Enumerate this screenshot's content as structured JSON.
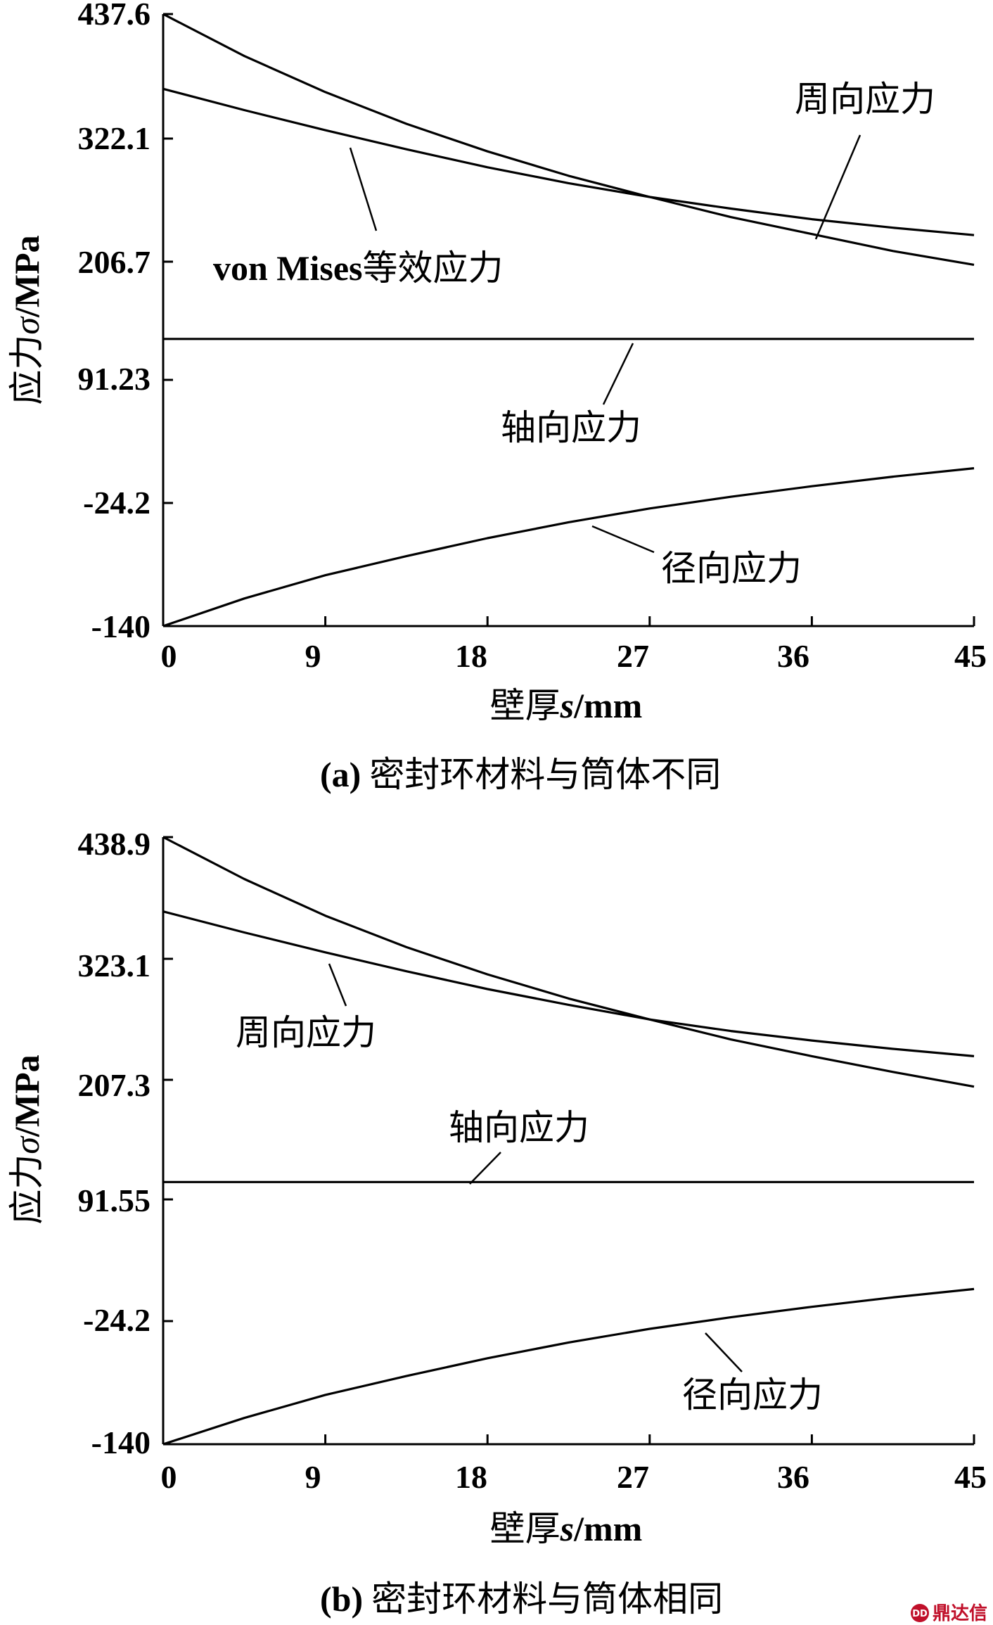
{
  "chart_data": [
    {
      "type": "line",
      "x_label_parts": [
        "壁厚",
        "s",
        "/mm"
      ],
      "y_label_parts": [
        "应力",
        "σ",
        "/MPa"
      ],
      "x_ticks": [
        "0",
        "9",
        "18",
        "27",
        "36",
        "45"
      ],
      "y_ticks": [
        "437.6",
        "322.1",
        "206.7",
        "91.23",
        "-24.2",
        "-140"
      ],
      "xlim": [
        0,
        45
      ],
      "ylim": [
        -140,
        437.6
      ],
      "grid": false,
      "series": [
        {
          "name": "von Mises等效应力",
          "x": [
            0,
            4.5,
            9,
            13.5,
            18,
            22.5,
            27,
            31.5,
            36,
            40.5,
            45
          ],
          "y": [
            437.6,
            398,
            364,
            334,
            308,
            285,
            265,
            246,
            230,
            214,
            201
          ]
        },
        {
          "name": "周向应力",
          "x": [
            0,
            4.5,
            9,
            13.5,
            18,
            22.5,
            27,
            31.5,
            36,
            40.5,
            45
          ],
          "y": [
            367,
            347,
            328,
            310,
            293,
            278,
            265,
            254,
            244,
            236,
            229
          ]
        },
        {
          "name": "轴向应力",
          "x": [
            0,
            45
          ],
          "y": [
            131,
            131
          ]
        },
        {
          "name": "径向应力",
          "x": [
            0,
            4.5,
            9,
            13.5,
            18,
            22.5,
            27,
            31.5,
            36,
            40.5,
            45
          ],
          "y": [
            -140,
            -114,
            -92,
            -74,
            -57,
            -42,
            -29,
            -18,
            -8,
            1,
            9
          ]
        }
      ],
      "annotations": [
        {
          "text_latin": "von Mises",
          "text_cjk": "等效应力"
        },
        {
          "text": "周向应力"
        },
        {
          "text": "轴向应力"
        },
        {
          "text": "径向应力"
        }
      ],
      "caption_prefix": "(a)",
      "caption_text": "密封环材料与筒体不同"
    },
    {
      "type": "line",
      "x_label_parts": [
        "壁厚",
        "s",
        "/mm"
      ],
      "y_label_parts": [
        "应力",
        "σ",
        "/MPa"
      ],
      "x_ticks": [
        "0",
        "9",
        "18",
        "27",
        "36",
        "45"
      ],
      "y_ticks": [
        "438.9",
        "323.1",
        "207.3",
        "91.55",
        "-24.2",
        "-140"
      ],
      "xlim": [
        0,
        45
      ],
      "ylim": [
        -140,
        438.9
      ],
      "grid": false,
      "series": [
        {
          "name": "周向应力",
          "x": [
            0,
            4.5,
            9,
            13.5,
            18,
            22.5,
            27,
            31.5,
            36,
            40.5,
            45
          ],
          "y": [
            438.9,
            399,
            364,
            334,
            308,
            285,
            265,
            246,
            230,
            215,
            201
          ]
        },
        {
          "name": "",
          "x": [
            0,
            4.5,
            9,
            13.5,
            18,
            22.5,
            27,
            31.5,
            36,
            40.5,
            45
          ],
          "y": [
            368,
            348,
            329,
            311,
            294,
            279,
            265,
            254,
            245,
            237,
            230
          ]
        },
        {
          "name": "轴向应力",
          "x": [
            0,
            45
          ],
          "y": [
            110,
            110
          ]
        },
        {
          "name": "径向应力",
          "x": [
            0,
            4.5,
            9,
            13.5,
            18,
            22.5,
            27,
            31.5,
            36,
            40.5,
            45
          ],
          "y": [
            -140,
            -115,
            -93,
            -75,
            -58,
            -43,
            -30,
            -19,
            -9,
            0,
            8
          ]
        }
      ],
      "annotations": [
        {
          "text": "周向应力"
        },
        {
          "text": "轴向应力"
        },
        {
          "text": "径向应力"
        }
      ],
      "caption_prefix": "(b)",
      "caption_text": "密封环材料与筒体相同"
    }
  ],
  "watermark": {
    "logo_text": "DD",
    "text": "鼎达信",
    "color": "#c0102a"
  }
}
